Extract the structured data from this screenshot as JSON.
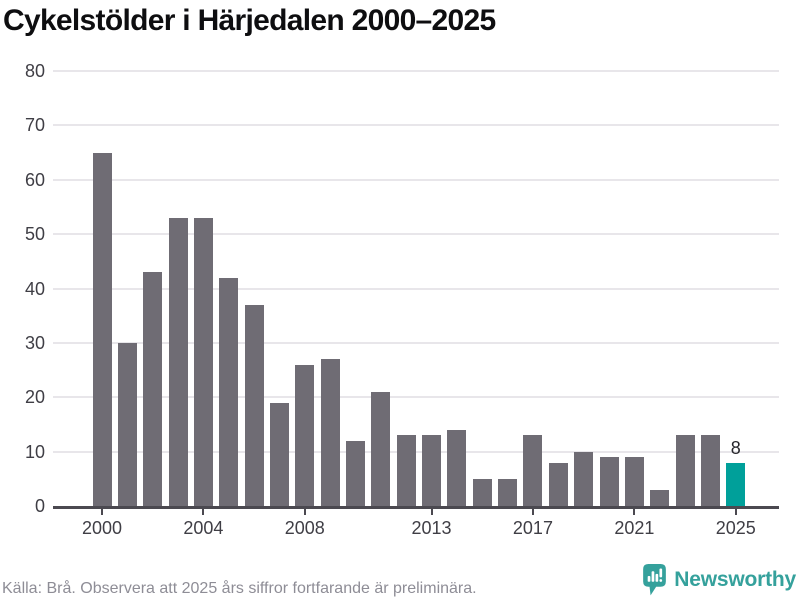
{
  "title": "Cykelstölder i Härjedalen 2000–2025",
  "footer": {
    "source_note": "Källa: Brå. Observera att 2025 års siffror fortfarande är preliminära."
  },
  "branding": {
    "name": "Newsworthy",
    "icon": "newsworthy-speech-bubble-bar-chart-icon"
  },
  "colors": {
    "bar": "#6f6c74",
    "highlight": "#00a09a",
    "gridline": "#e8e6ea",
    "axis": "#4b4950",
    "title": "#0e0e10",
    "tick_label": "#3f3e45",
    "value_label": "#26262b",
    "footer": "#8e8d96",
    "logo": "#35a19c",
    "background": "#ffffff"
  },
  "chart_data": {
    "type": "bar",
    "title": "Cykelstölder i Härjedalen 2000–2025",
    "xlabel": "",
    "ylabel": "",
    "x": [
      2000,
      2001,
      2002,
      2003,
      2004,
      2005,
      2006,
      2007,
      2008,
      2009,
      2010,
      2011,
      2012,
      2013,
      2014,
      2015,
      2016,
      2017,
      2018,
      2019,
      2020,
      2021,
      2022,
      2023,
      2024,
      2025
    ],
    "values": [
      65,
      30,
      43,
      53,
      53,
      42,
      37,
      19,
      26,
      27,
      12,
      21,
      13,
      13,
      14,
      5,
      5,
      13,
      8,
      10,
      9,
      9,
      3,
      13,
      13,
      8
    ],
    "highlight": {
      "index": 25,
      "year": 2025,
      "value": 8,
      "label": "8"
    },
    "ylim": [
      0,
      80
    ],
    "yticks": [
      0,
      10,
      20,
      30,
      40,
      50,
      60,
      70,
      80
    ],
    "xticks": [
      {
        "index": 0,
        "label": "2000"
      },
      {
        "index": 4,
        "label": "2004"
      },
      {
        "index": 8,
        "label": "2008"
      },
      {
        "index": 13,
        "label": "2013"
      },
      {
        "index": 17,
        "label": "2017"
      },
      {
        "index": 21,
        "label": "2021"
      },
      {
        "index": 25,
        "label": "2025"
      }
    ],
    "grid": "horizontal",
    "legend": false
  }
}
